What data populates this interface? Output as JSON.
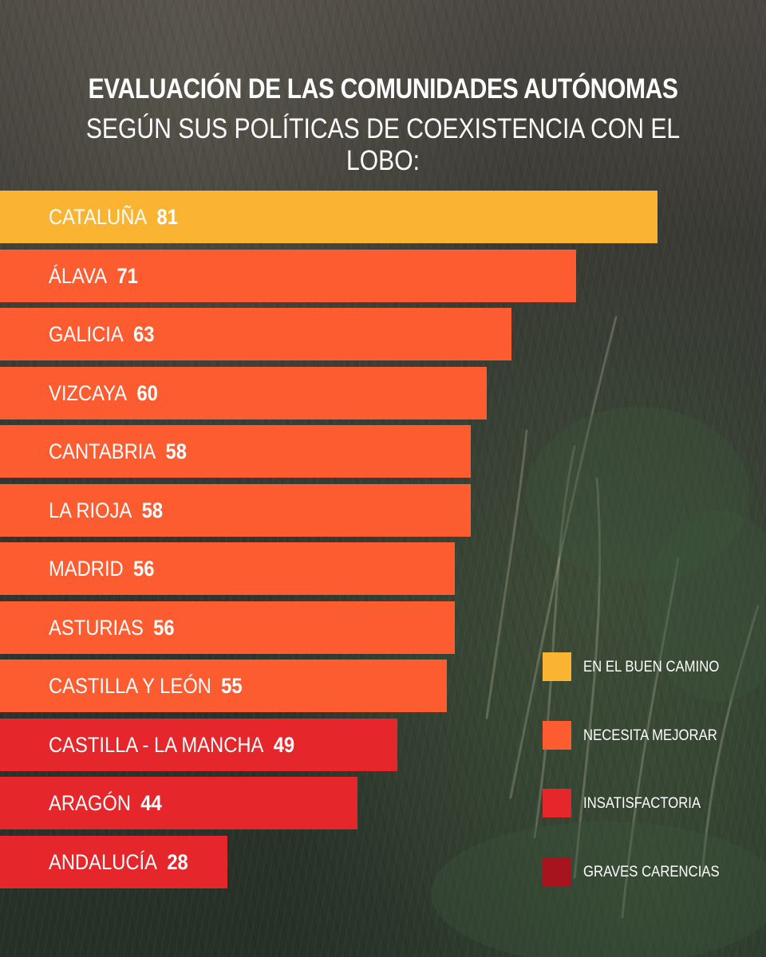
{
  "title_line1": "EVALUACIÓN DE LAS COMUNIDADES AUTÓNOMAS",
  "title_line2": "SEGÚN SUS POLÍTICAS DE COEXISTENCIA CON EL LOBO:",
  "chart_data": {
    "type": "bar",
    "orientation": "horizontal",
    "title": "EVALUACIÓN DE LAS COMUNIDADES AUTÓNOMAS SEGÚN SUS POLÍTICAS DE COEXISTENCIA CON EL LOBO:",
    "xlim": [
      0,
      100
    ],
    "grid": false,
    "legend_position": "bottom-right",
    "categories": [
      "CATALUÑA",
      "ÁLAVA",
      "GALICIA",
      "VIZCAYA",
      "CANTABRIA",
      "LA RIOJA",
      "MADRID",
      "ASTURIAS",
      "CASTILLA Y LEÓN",
      "CASTILLA - LA MANCHA",
      "ARAGÓN",
      "ANDALUCÍA"
    ],
    "values": [
      81,
      71,
      63,
      60,
      58,
      58,
      56,
      56,
      55,
      49,
      44,
      28
    ],
    "value_categories": [
      "good",
      "improve",
      "improve",
      "improve",
      "improve",
      "improve",
      "improve",
      "improve",
      "improve",
      "poor",
      "poor",
      "poor"
    ],
    "legend": [
      {
        "key": "good",
        "label": "EN EL BUEN CAMINO",
        "color": "#fbb332"
      },
      {
        "key": "improve",
        "label": "NECESITA MEJORAR",
        "color": "#fd5b30"
      },
      {
        "key": "poor",
        "label": "INSATISFACTORIA",
        "color": "#e5262a"
      },
      {
        "key": "severe",
        "label": "GRAVES CARENCIAS",
        "color": "#a8141e"
      }
    ]
  }
}
